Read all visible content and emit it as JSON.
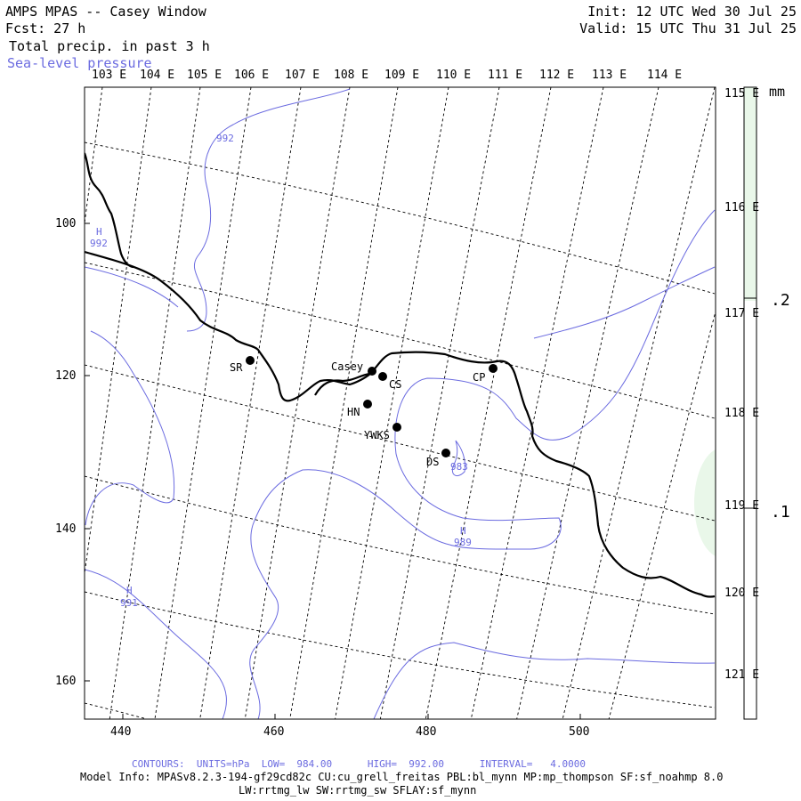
{
  "header": {
    "title_line": "AMPS MPAS -- Casey Window",
    "forecast_line": "Fcst:    27 h",
    "field_line": "Total precip. in past 3 h",
    "contour_field_line": "Sea-level pressure",
    "init_line": "Init: 12 UTC Wed 30 Jul 25",
    "valid_line": "Valid: 15 UTC Thu 31 Jul 25"
  },
  "map": {
    "longitude_labels": [
      "103 E",
      "104 E",
      "105 E",
      "106 E",
      "107 E",
      "108 E",
      "109 E",
      "110 E",
      "111 E",
      "112 E",
      "113 E",
      "114 E"
    ],
    "right_longitude_labels": [
      "115 E",
      "116 E",
      "117 E",
      "118 E",
      "119 E",
      "120 E",
      "121 E"
    ],
    "x_tick_labels": [
      "440",
      "460",
      "480",
      "500"
    ],
    "y_tick_labels": [
      "100",
      "120",
      "140",
      "160"
    ],
    "stations": [
      {
        "label": "SR"
      },
      {
        "label": "Casey"
      },
      {
        "label": "CS"
      },
      {
        "label": "CP"
      },
      {
        "label": "HN"
      },
      {
        "label": "YWKS"
      },
      {
        "label": "DS"
      }
    ],
    "pressure_labels": [
      {
        "mark": "",
        "value": "992"
      },
      {
        "mark": "H",
        "value": "992"
      },
      {
        "mark": "",
        "value": "983"
      },
      {
        "mark": "H",
        "value": "989"
      },
      {
        "mark": "H",
        "value": "991"
      }
    ],
    "coastline_color": "#000000",
    "contour_color": "#6b6be0",
    "grid_color": "#000000"
  },
  "colorbar": {
    "unit": "mm",
    "labels": [
      ".2",
      ".1"
    ],
    "fill_color": "#e9f7e9"
  },
  "footer": {
    "contours_line": "CONTOURS:  UNITS=hPa  LOW=  984.00      HIGH=  992.00      INTERVAL=   4.0000",
    "model_info_line": "Model Info: MPASv8.2.3-194-gf29cd82c CU:cu_grell_freitas PBL:bl_mynn MP:mp_thompson SF:sf_noahmp 8.0",
    "physics_line": "LW:rrtmg_lw SW:rrtmg_sw SFLAY:sf_mynn"
  }
}
